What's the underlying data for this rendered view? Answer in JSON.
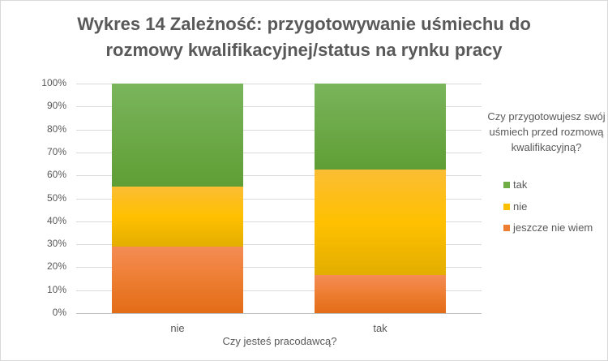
{
  "chart_data": {
    "type": "bar",
    "stacked": true,
    "percent_stacked": true,
    "title": "Wykres 14 Zależność: przygotowywanie uśmiechu do rozmowy kwalifikacyjnej/status na rynku pracy",
    "title_lines": [
      "Wykres 14 Zależność: przygotowywanie uśmiechu do",
      "rozmowy kwalifikacyjnej/status na rynku pracy"
    ],
    "xlabel": "Czy jesteś pracodawcą?",
    "ylabel": "",
    "categories": [
      "nie",
      "tak"
    ],
    "series": [
      {
        "name": "jeszcze nie wiem",
        "color": "#ED7D31",
        "values": [
          29,
          16.5
        ]
      },
      {
        "name": "nie",
        "color": "#FFC000",
        "values": [
          26,
          46
        ]
      },
      {
        "name": "tak",
        "color": "#70AD47",
        "values": [
          45,
          37.5
        ]
      }
    ],
    "ylim": [
      0,
      100
    ],
    "yticks": [
      "0%",
      "10%",
      "20%",
      "30%",
      "40%",
      "50%",
      "60%",
      "70%",
      "80%",
      "90%",
      "100%"
    ],
    "grid": true,
    "legend": {
      "position": "right",
      "title": "Czy przygotowujesz swój uśmiech przed rozmową kwalifikacyjną?",
      "title_lines": [
        "Czy przygotowujesz swój",
        "uśmiech przed rozmową",
        "kwalifikacyjną?"
      ],
      "entries": [
        "tak",
        "nie",
        "jeszcze nie wiem"
      ]
    }
  }
}
